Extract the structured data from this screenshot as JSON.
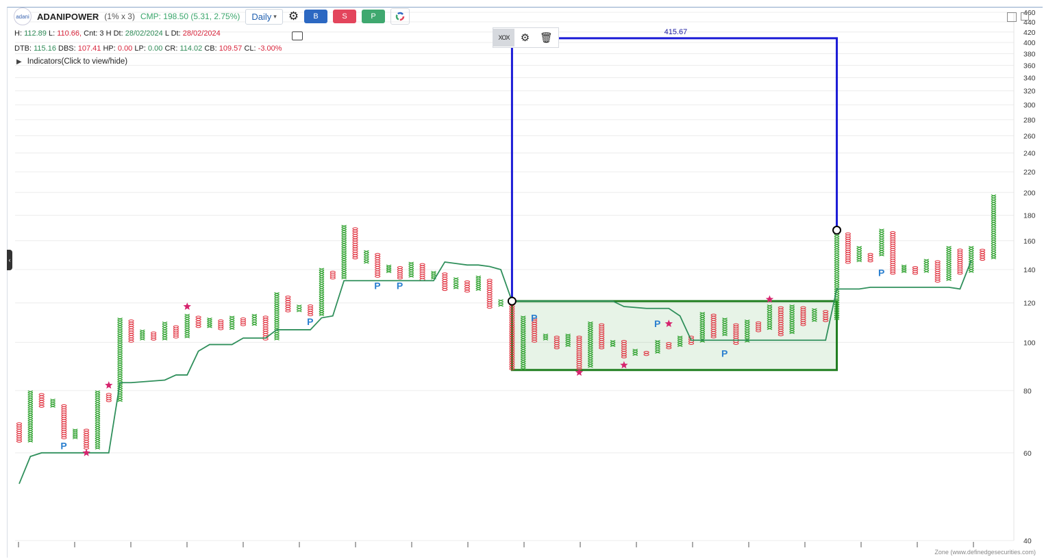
{
  "header": {
    "logo_text": "adani",
    "symbol": "ADANIPOWER",
    "box_info": "(1% x 3)",
    "cmp": "CMP: 198.50 (5.31, 2.75%)",
    "timeframe": "Daily",
    "buy_label": "B",
    "sell_label": "S",
    "p_label": "P"
  },
  "info_line1": {
    "h_label": "H:",
    "h": "112.89",
    "l_label": "L:",
    "l": "110.66,",
    "cnt_label": "Cnt:",
    "cnt": "3",
    "hdt_label": "H Dt:",
    "hdt": "28/02/2024",
    "ldt_label": "L Dt:",
    "ldt": "28/02/2024"
  },
  "info_line2": {
    "dtb_label": "DTB:",
    "dtb": "115.16",
    "dbs_label": "DBS:",
    "dbs": "107.41",
    "hp_label": "HP:",
    "hp": "0.00",
    "lp_label": "LP:",
    "lp": "0.00",
    "cr_label": "CR:",
    "cr": "114.02",
    "cb_label": "CB:",
    "cb": "109.57",
    "cl_label": "CL:",
    "cl": "-3.00%"
  },
  "indicators_label": "Indicators(Click to view/hide)",
  "credit": "Zone (www.definedgesecurities.com)",
  "colors": {
    "x": "#2ca02c",
    "o": "#e0303e",
    "trend": "#2f8f5b",
    "measure": "#1a1ad6",
    "zone": "#1e7d1e",
    "star": "#d6246e",
    "p": "#2a7fcf"
  },
  "chart_data": {
    "type": "point-and-figure",
    "y_scale": "log",
    "ylim": [
      40,
      460
    ],
    "y_ticks": [
      "460",
      "440",
      "420",
      "400",
      "380",
      "360",
      "340",
      "320",
      "300",
      "280",
      "260",
      "240",
      "220",
      "200",
      "180",
      "160",
      "140",
      "120",
      "100",
      "80",
      "60",
      "40"
    ],
    "measure_label": "415.67",
    "measure": {
      "x_start": 44,
      "x_end": 73,
      "base": 121,
      "target": 408,
      "end_point": 168
    },
    "zone": {
      "x_start": 44,
      "x_end": 73,
      "top": 121,
      "bottom": 88
    },
    "columns": [
      {
        "t": "O",
        "lo": 63,
        "hi": 69
      },
      {
        "t": "X",
        "lo": 63,
        "hi": 80
      },
      {
        "t": "O",
        "lo": 74,
        "hi": 79
      },
      {
        "t": "X",
        "lo": 74,
        "hi": 77
      },
      {
        "t": "O",
        "lo": 64,
        "hi": 75
      },
      {
        "t": "X",
        "lo": 64,
        "hi": 67
      },
      {
        "t": "O",
        "lo": 61,
        "hi": 67
      },
      {
        "t": "X",
        "lo": 61,
        "hi": 80
      },
      {
        "t": "O",
        "lo": 76,
        "hi": 79
      },
      {
        "t": "X",
        "lo": 76,
        "hi": 112
      },
      {
        "t": "O",
        "lo": 100,
        "hi": 111
      },
      {
        "t": "X",
        "lo": 101,
        "hi": 106
      },
      {
        "t": "O",
        "lo": 101,
        "hi": 105
      },
      {
        "t": "X",
        "lo": 101,
        "hi": 110
      },
      {
        "t": "O",
        "lo": 102,
        "hi": 108
      },
      {
        "t": "X",
        "lo": 102,
        "hi": 114
      },
      {
        "t": "O",
        "lo": 107,
        "hi": 113
      },
      {
        "t": "X",
        "lo": 107,
        "hi": 112
      },
      {
        "t": "O",
        "lo": 106,
        "hi": 111
      },
      {
        "t": "X",
        "lo": 106,
        "hi": 113
      },
      {
        "t": "O",
        "lo": 108,
        "hi": 112
      },
      {
        "t": "X",
        "lo": 108,
        "hi": 114
      },
      {
        "t": "O",
        "lo": 101,
        "hi": 113
      },
      {
        "t": "X",
        "lo": 101,
        "hi": 126
      },
      {
        "t": "O",
        "lo": 115,
        "hi": 124
      },
      {
        "t": "X",
        "lo": 115,
        "hi": 119
      },
      {
        "t": "O",
        "lo": 113,
        "hi": 119
      },
      {
        "t": "X",
        "lo": 113,
        "hi": 141
      },
      {
        "t": "O",
        "lo": 134,
        "hi": 139
      },
      {
        "t": "X",
        "lo": 134,
        "hi": 172
      },
      {
        "t": "O",
        "lo": 147,
        "hi": 170
      },
      {
        "t": "X",
        "lo": 144,
        "hi": 153
      },
      {
        "t": "O",
        "lo": 135,
        "hi": 151
      },
      {
        "t": "X",
        "lo": 138,
        "hi": 143
      },
      {
        "t": "O",
        "lo": 134,
        "hi": 142
      },
      {
        "t": "X",
        "lo": 135,
        "hi": 145
      },
      {
        "t": "O",
        "lo": 133,
        "hi": 144
      },
      {
        "t": "X",
        "lo": 134,
        "hi": 139
      },
      {
        "t": "O",
        "lo": 127,
        "hi": 138
      },
      {
        "t": "X",
        "lo": 128,
        "hi": 135
      },
      {
        "t": "O",
        "lo": 126,
        "hi": 133
      },
      {
        "t": "X",
        "lo": 127,
        "hi": 136
      },
      {
        "t": "O",
        "lo": 117,
        "hi": 134
      },
      {
        "t": "X",
        "lo": 118,
        "hi": 122
      },
      {
        "t": "O",
        "lo": 88,
        "hi": 121
      },
      {
        "t": "X",
        "lo": 88,
        "hi": 113
      },
      {
        "t": "O",
        "lo": 100,
        "hi": 112
      },
      {
        "t": "X",
        "lo": 101,
        "hi": 104
      },
      {
        "t": "O",
        "lo": 97,
        "hi": 103
      },
      {
        "t": "X",
        "lo": 98,
        "hi": 104
      },
      {
        "t": "O",
        "lo": 88,
        "hi": 103
      },
      {
        "t": "X",
        "lo": 89,
        "hi": 110
      },
      {
        "t": "O",
        "lo": 97,
        "hi": 109
      },
      {
        "t": "X",
        "lo": 98,
        "hi": 101
      },
      {
        "t": "O",
        "lo": 93,
        "hi": 101
      },
      {
        "t": "X",
        "lo": 94,
        "hi": 97
      },
      {
        "t": "O",
        "lo": 94,
        "hi": 96
      },
      {
        "t": "X",
        "lo": 95,
        "hi": 101
      },
      {
        "t": "O",
        "lo": 97,
        "hi": 100
      },
      {
        "t": "X",
        "lo": 98,
        "hi": 103
      },
      {
        "t": "O",
        "lo": 99,
        "hi": 103
      },
      {
        "t": "X",
        "lo": 100,
        "hi": 115
      },
      {
        "t": "O",
        "lo": 102,
        "hi": 114
      },
      {
        "t": "X",
        "lo": 103,
        "hi": 112
      },
      {
        "t": "O",
        "lo": 99,
        "hi": 109
      },
      {
        "t": "X",
        "lo": 100,
        "hi": 111
      },
      {
        "t": "O",
        "lo": 105,
        "hi": 110
      },
      {
        "t": "X",
        "lo": 106,
        "hi": 119
      },
      {
        "t": "O",
        "lo": 103,
        "hi": 118
      },
      {
        "t": "X",
        "lo": 104,
        "hi": 119
      },
      {
        "t": "O",
        "lo": 108,
        "hi": 118
      },
      {
        "t": "X",
        "lo": 110,
        "hi": 117
      },
      {
        "t": "O",
        "lo": 110,
        "hi": 116
      },
      {
        "t": "X",
        "lo": 111,
        "hi": 168
      },
      {
        "t": "O",
        "lo": 144,
        "hi": 166
      },
      {
        "t": "X",
        "lo": 145,
        "hi": 156
      },
      {
        "t": "O",
        "lo": 145,
        "hi": 151
      },
      {
        "t": "X",
        "lo": 149,
        "hi": 169
      },
      {
        "t": "O",
        "lo": 137,
        "hi": 167
      },
      {
        "t": "X",
        "lo": 138,
        "hi": 143
      },
      {
        "t": "O",
        "lo": 137,
        "hi": 142
      },
      {
        "t": "X",
        "lo": 138,
        "hi": 147
      },
      {
        "t": "O",
        "lo": 132,
        "hi": 146
      },
      {
        "t": "X",
        "lo": 133,
        "hi": 156
      },
      {
        "t": "O",
        "lo": 137,
        "hi": 154
      },
      {
        "t": "X",
        "lo": 138,
        "hi": 156
      },
      {
        "t": "O",
        "lo": 146,
        "hi": 154
      },
      {
        "t": "X",
        "lo": 147,
        "hi": 198
      }
    ],
    "trend_line": [
      [
        0,
        52
      ],
      [
        1,
        59
      ],
      [
        2,
        60
      ],
      [
        8,
        60
      ],
      [
        9,
        83
      ],
      [
        10,
        83
      ],
      [
        13,
        84
      ],
      [
        14,
        86
      ],
      [
        15,
        86
      ],
      [
        16,
        96
      ],
      [
        17,
        99
      ],
      [
        19,
        99
      ],
      [
        20,
        102
      ],
      [
        22,
        102
      ],
      [
        23,
        106
      ],
      [
        26,
        106
      ],
      [
        27,
        112
      ],
      [
        28,
        113
      ],
      [
        29,
        133
      ],
      [
        36,
        133
      ],
      [
        37,
        133
      ],
      [
        38,
        145
      ],
      [
        39,
        144
      ],
      [
        40,
        143
      ],
      [
        41,
        143
      ],
      [
        42,
        142
      ],
      [
        43,
        140
      ],
      [
        44,
        121
      ],
      [
        53,
        121
      ],
      [
        54,
        118
      ],
      [
        56,
        117
      ],
      [
        58,
        117
      ],
      [
        59,
        113
      ],
      [
        60,
        101
      ],
      [
        72,
        101
      ],
      [
        73,
        128
      ],
      [
        75,
        128
      ],
      [
        76,
        129
      ],
      [
        83,
        129
      ],
      [
        84,
        128
      ],
      [
        85,
        146
      ]
    ],
    "stars": [
      [
        6,
        60
      ],
      [
        8,
        82
      ],
      [
        15,
        118
      ],
      [
        50,
        87
      ],
      [
        54,
        90
      ],
      [
        58,
        109
      ],
      [
        67,
        122
      ]
    ],
    "p_markers": [
      [
        4,
        62
      ],
      [
        26,
        110
      ],
      [
        32,
        130
      ],
      [
        34,
        130
      ],
      [
        46,
        112
      ],
      [
        57,
        109
      ],
      [
        63,
        95
      ],
      [
        77,
        138
      ]
    ]
  }
}
